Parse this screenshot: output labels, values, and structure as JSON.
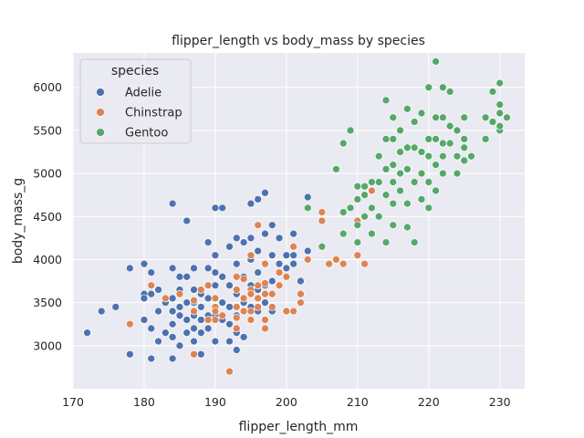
{
  "chart_data": {
    "type": "scatter",
    "title": "flipper_length vs body_mass by species",
    "xlabel": "flipper_length_mm",
    "ylabel": "body_mass_g",
    "xlim": [
      170,
      233.5
    ],
    "ylim": [
      2500,
      6400
    ],
    "xticks": [
      170,
      180,
      190,
      200,
      210,
      220,
      230
    ],
    "yticks": [
      3000,
      3500,
      4000,
      4500,
      5000,
      5500,
      6000
    ],
    "grid": true,
    "background": "#eaeaf2",
    "legend": {
      "title": "species",
      "placement": "top-left"
    },
    "series": [
      {
        "name": "Adelie",
        "color": "#4c72b0",
        "points": [
          [
            172,
            3150
          ],
          [
            174,
            3400
          ],
          [
            176,
            3450
          ],
          [
            178,
            3900
          ],
          [
            178,
            2900
          ],
          [
            180,
            3950
          ],
          [
            180,
            3600
          ],
          [
            180,
            3550
          ],
          [
            180,
            3300
          ],
          [
            181,
            3850
          ],
          [
            181,
            3600
          ],
          [
            181,
            3200
          ],
          [
            181,
            2850
          ],
          [
            182,
            3650
          ],
          [
            182,
            3400
          ],
          [
            182,
            3050
          ],
          [
            183,
            3550
          ],
          [
            183,
            3500
          ],
          [
            183,
            3150
          ],
          [
            184,
            4650
          ],
          [
            184,
            3900
          ],
          [
            184,
            3550
          ],
          [
            184,
            3400
          ],
          [
            184,
            3250
          ],
          [
            184,
            3100
          ],
          [
            184,
            2850
          ],
          [
            185,
            3800
          ],
          [
            185,
            3650
          ],
          [
            185,
            3450
          ],
          [
            185,
            3350
          ],
          [
            185,
            3000
          ],
          [
            186,
            4450
          ],
          [
            186,
            3800
          ],
          [
            186,
            3500
          ],
          [
            186,
            3300
          ],
          [
            186,
            3150
          ],
          [
            187,
            3900
          ],
          [
            187,
            3650
          ],
          [
            187,
            3500
          ],
          [
            187,
            3350
          ],
          [
            187,
            3200
          ],
          [
            187,
            3050
          ],
          [
            188,
            3600
          ],
          [
            188,
            3450
          ],
          [
            188,
            3300
          ],
          [
            188,
            3150
          ],
          [
            188,
            2900
          ],
          [
            189,
            4200
          ],
          [
            189,
            3900
          ],
          [
            189,
            3550
          ],
          [
            189,
            3350
          ],
          [
            189,
            3200
          ],
          [
            190,
            4600
          ],
          [
            190,
            4050
          ],
          [
            190,
            3850
          ],
          [
            190,
            3700
          ],
          [
            190,
            3450
          ],
          [
            190,
            3350
          ],
          [
            190,
            3050
          ],
          [
            191,
            4600
          ],
          [
            191,
            3800
          ],
          [
            191,
            3500
          ],
          [
            191,
            3300
          ],
          [
            192,
            4150
          ],
          [
            192,
            3700
          ],
          [
            192,
            3450
          ],
          [
            192,
            3250
          ],
          [
            192,
            3050
          ],
          [
            193,
            4250
          ],
          [
            193,
            3950
          ],
          [
            193,
            3600
          ],
          [
            193,
            3350
          ],
          [
            193,
            3150
          ],
          [
            193,
            2950
          ],
          [
            194,
            4200
          ],
          [
            194,
            3800
          ],
          [
            194,
            3500
          ],
          [
            194,
            3100
          ],
          [
            195,
            4650
          ],
          [
            195,
            4250
          ],
          [
            195,
            4000
          ],
          [
            195,
            3700
          ],
          [
            195,
            3450
          ],
          [
            195,
            3300
          ],
          [
            196,
            4700
          ],
          [
            196,
            4400
          ],
          [
            196,
            4100
          ],
          [
            196,
            3850
          ],
          [
            196,
            3650
          ],
          [
            196,
            3400
          ],
          [
            197,
            4775
          ],
          [
            197,
            4300
          ],
          [
            197,
            3950
          ],
          [
            197,
            3700
          ],
          [
            197,
            3500
          ],
          [
            198,
            4400
          ],
          [
            198,
            4050
          ],
          [
            198,
            3750
          ],
          [
            198,
            3400
          ],
          [
            199,
            4250
          ],
          [
            199,
            3950
          ],
          [
            199,
            3700
          ],
          [
            200,
            4050
          ],
          [
            200,
            3900
          ],
          [
            200,
            3800
          ],
          [
            201,
            4300
          ],
          [
            201,
            4050
          ],
          [
            201,
            3950
          ],
          [
            202,
            3750
          ],
          [
            203,
            4725
          ],
          [
            203,
            4100
          ]
        ]
      },
      {
        "name": "Chinstrap",
        "color": "#dd8452",
        "points": [
          [
            178,
            3250
          ],
          [
            181,
            3700
          ],
          [
            183,
            3550
          ],
          [
            185,
            3600
          ],
          [
            187,
            3525
          ],
          [
            187,
            2900
          ],
          [
            187,
            3400
          ],
          [
            188,
            3650
          ],
          [
            189,
            3700
          ],
          [
            189,
            3300
          ],
          [
            190,
            3550
          ],
          [
            190,
            3300
          ],
          [
            190,
            3450
          ],
          [
            190,
            3400
          ],
          [
            191,
            3350
          ],
          [
            192,
            2700
          ],
          [
            193,
            3800
          ],
          [
            193,
            3650
          ],
          [
            193,
            3450
          ],
          [
            193,
            3325
          ],
          [
            193,
            3200
          ],
          [
            194,
            3775
          ],
          [
            194,
            3550
          ],
          [
            194,
            3400
          ],
          [
            195,
            4050
          ],
          [
            195,
            3650
          ],
          [
            195,
            3600
          ],
          [
            195,
            3400
          ],
          [
            195,
            3300
          ],
          [
            196,
            4400
          ],
          [
            196,
            3700
          ],
          [
            196,
            3550
          ],
          [
            196,
            3450
          ],
          [
            197,
            3950
          ],
          [
            197,
            3725
          ],
          [
            197,
            3600
          ],
          [
            197,
            3300
          ],
          [
            197,
            3200
          ],
          [
            198,
            3600
          ],
          [
            198,
            3450
          ],
          [
            199,
            3850
          ],
          [
            199,
            3700
          ],
          [
            200,
            3800
          ],
          [
            200,
            3400
          ],
          [
            201,
            3400
          ],
          [
            201,
            4150
          ],
          [
            202,
            3600
          ],
          [
            202,
            3500
          ],
          [
            203,
            4000
          ],
          [
            205,
            4550
          ],
          [
            205,
            4450
          ],
          [
            206,
            3950
          ],
          [
            207,
            4000
          ],
          [
            208,
            3950
          ],
          [
            210,
            4050
          ],
          [
            210,
            4450
          ],
          [
            211,
            3950
          ],
          [
            212,
            4800
          ]
        ]
      },
      {
        "name": "Gentoo",
        "color": "#55a868",
        "points": [
          [
            203,
            4600
          ],
          [
            205,
            4150
          ],
          [
            207,
            5050
          ],
          [
            208,
            5350
          ],
          [
            208,
            4550
          ],
          [
            208,
            4300
          ],
          [
            209,
            5500
          ],
          [
            209,
            4600
          ],
          [
            210,
            4850
          ],
          [
            210,
            4700
          ],
          [
            210,
            4400
          ],
          [
            210,
            4200
          ],
          [
            211,
            4850
          ],
          [
            211,
            4750
          ],
          [
            211,
            4500
          ],
          [
            212,
            4900
          ],
          [
            212,
            4600
          ],
          [
            212,
            4300
          ],
          [
            213,
            5200
          ],
          [
            213,
            4900
          ],
          [
            213,
            4500
          ],
          [
            214,
            5850
          ],
          [
            214,
            5400
          ],
          [
            214,
            5050
          ],
          [
            214,
            4750
          ],
          [
            214,
            4200
          ],
          [
            215,
            5650
          ],
          [
            215,
            5400
          ],
          [
            215,
            5100
          ],
          [
            215,
            4900
          ],
          [
            215,
            4650
          ],
          [
            215,
            4400
          ],
          [
            216,
            5500
          ],
          [
            216,
            5250
          ],
          [
            216,
            5000
          ],
          [
            216,
            4800
          ],
          [
            217,
            5750
          ],
          [
            217,
            5300
          ],
          [
            217,
            5050
          ],
          [
            217,
            4650
          ],
          [
            217,
            4375
          ],
          [
            218,
            5600
          ],
          [
            218,
            5300
          ],
          [
            218,
            4900
          ],
          [
            218,
            4200
          ],
          [
            219,
            5700
          ],
          [
            219,
            5250
          ],
          [
            219,
            5000
          ],
          [
            219,
            4700
          ],
          [
            220,
            6000
          ],
          [
            220,
            5400
          ],
          [
            220,
            5200
          ],
          [
            220,
            4900
          ],
          [
            220,
            4600
          ],
          [
            221,
            6300
          ],
          [
            221,
            5650
          ],
          [
            221,
            5400
          ],
          [
            221,
            5100
          ],
          [
            221,
            4800
          ],
          [
            222,
            6000
          ],
          [
            222,
            5650
          ],
          [
            222,
            5350
          ],
          [
            222,
            5200
          ],
          [
            222,
            5000
          ],
          [
            223,
            5950
          ],
          [
            223,
            5550
          ],
          [
            223,
            5350
          ],
          [
            224,
            5500
          ],
          [
            224,
            5200
          ],
          [
            224,
            5000
          ],
          [
            225,
            5650
          ],
          [
            225,
            5400
          ],
          [
            225,
            5300
          ],
          [
            225,
            5150
          ],
          [
            226,
            5200
          ],
          [
            228,
            5650
          ],
          [
            228,
            5400
          ],
          [
            229,
            5600
          ],
          [
            229,
            5950
          ],
          [
            230,
            6050
          ],
          [
            230,
            5800
          ],
          [
            230,
            5700
          ],
          [
            230,
            5500
          ],
          [
            230,
            5550
          ],
          [
            231,
            5650
          ]
        ]
      }
    ]
  }
}
